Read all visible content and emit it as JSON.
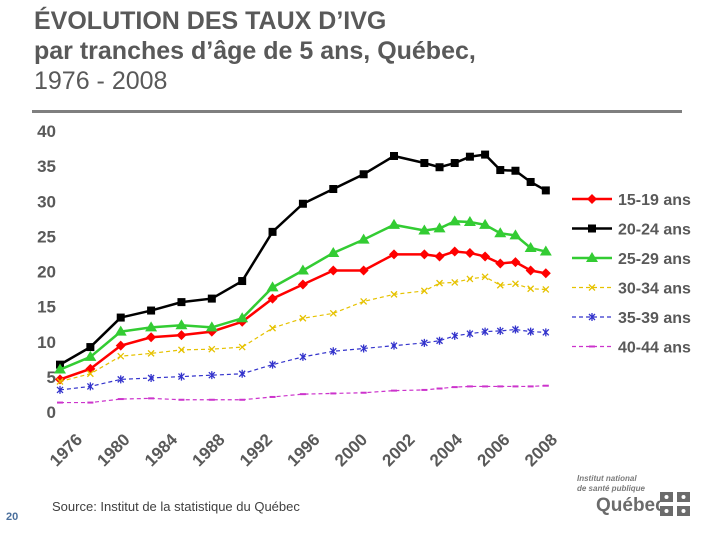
{
  "slide": {
    "title_line1": "ÉVOLUTION DES TAUX D’IVG",
    "title_line2": "par tranches d’âge de 5 ans, Québec,",
    "title_line3": "1976 - 2008",
    "source": "Source: Institut de la statistique du Québec",
    "page_number": "20",
    "logo_line1": "Institut national",
    "logo_line2": "de santé publique",
    "logo_wordmark": "Québec"
  },
  "chart_data": {
    "type": "line",
    "title": "",
    "xlabel": "",
    "ylabel": "",
    "ylim": [
      0,
      40
    ],
    "yticks": [
      0,
      5,
      10,
      15,
      20,
      25,
      30,
      35,
      40
    ],
    "xlim": [
      1976,
      2009
    ],
    "xticks": [
      "1976",
      "1980",
      "1984",
      "1988",
      "1992",
      "1996",
      "2000",
      "2002",
      "2004",
      "2006",
      "2008"
    ],
    "grid": false,
    "legend_position": "right",
    "x": [
      1976,
      1978,
      1980,
      1982,
      1984,
      1986,
      1988,
      1990,
      1992,
      1994,
      1996,
      1998,
      2000,
      2001,
      2002,
      2003,
      2004,
      2005,
      2006,
      2007,
      2008
    ],
    "series": [
      {
        "name": "15-19 ans",
        "color": "#ff0000",
        "marker": "diamond",
        "values": [
          4.5,
          6.0,
          9.3,
          10.5,
          10.8,
          11.3,
          12.7,
          16.0,
          18.0,
          20.0,
          20.0,
          22.3,
          22.3,
          22.0,
          22.7,
          22.5,
          22.0,
          21.0,
          21.2,
          20.0,
          19.6
        ]
      },
      {
        "name": "20-24 ans",
        "color": "#000000",
        "marker": "square",
        "values": [
          6.6,
          9.1,
          13.3,
          14.3,
          15.5,
          16.0,
          18.5,
          25.5,
          29.5,
          31.6,
          33.7,
          36.3,
          35.3,
          34.7,
          35.3,
          36.2,
          36.5,
          34.3,
          34.2,
          32.6,
          31.4
        ]
      },
      {
        "name": "25-29 ans",
        "color": "#33cc33",
        "marker": "triangle",
        "values": [
          5.9,
          7.7,
          11.3,
          11.9,
          12.2,
          11.9,
          13.2,
          17.6,
          20.0,
          22.5,
          24.4,
          26.5,
          25.7,
          26.0,
          27.0,
          26.9,
          26.5,
          25.3,
          25.0,
          23.2,
          22.7
        ]
      },
      {
        "name": "30-34 ans",
        "color": "#e6c200",
        "marker": "x",
        "values": [
          4.2,
          5.3,
          7.8,
          8.2,
          8.7,
          8.8,
          9.1,
          11.8,
          13.2,
          13.9,
          15.6,
          16.6,
          17.1,
          18.2,
          18.3,
          18.8,
          19.1,
          17.9,
          18.1,
          17.4,
          17.3
        ]
      },
      {
        "name": "35-39 ans",
        "color": "#3333cc",
        "marker": "star",
        "values": [
          3.0,
          3.5,
          4.5,
          4.7,
          4.9,
          5.1,
          5.3,
          6.6,
          7.7,
          8.5,
          8.9,
          9.3,
          9.7,
          10.0,
          10.7,
          11.0,
          11.3,
          11.4,
          11.6,
          11.3,
          11.2
        ]
      },
      {
        "name": "40-44 ans",
        "color": "#cc33cc",
        "marker": "dash",
        "values": [
          1.2,
          1.2,
          1.7,
          1.8,
          1.6,
          1.6,
          1.6,
          2.0,
          2.4,
          2.5,
          2.6,
          2.9,
          3.0,
          3.2,
          3.4,
          3.5,
          3.5,
          3.5,
          3.5,
          3.5,
          3.6
        ]
      }
    ]
  }
}
